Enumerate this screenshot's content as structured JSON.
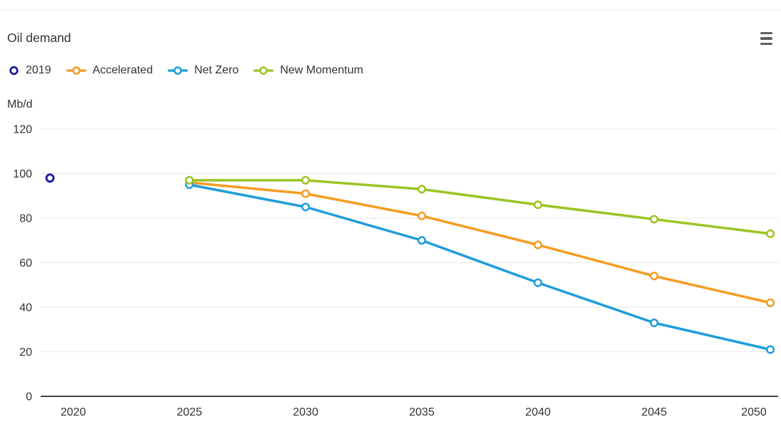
{
  "chart_data": {
    "type": "line",
    "title": "Oil demand",
    "ylabel": "Mb/d",
    "ylim": [
      0,
      120
    ],
    "y_ticks": [
      0,
      20,
      40,
      60,
      80,
      100,
      120
    ],
    "x_ticks": [
      2020,
      2025,
      2030,
      2035,
      2040,
      2045,
      2050
    ],
    "xlim": [
      2019,
      2050.5
    ],
    "grid": "horizontal gridlines on",
    "legend_position": "top-left",
    "axis_color": "#444444",
    "grid_color": "#e6e6e6",
    "text_color": "#333333",
    "series": [
      {
        "name": "2019",
        "color": "#1F1F9C",
        "marker_only": true,
        "x": [
          2019
        ],
        "values": [
          98
        ]
      },
      {
        "name": "Accelerated",
        "color": "#F59C22",
        "marker_only": false,
        "x": [
          2025,
          2030,
          2035,
          2040,
          2045,
          2050
        ],
        "values": [
          96,
          91,
          81,
          68,
          54,
          42
        ]
      },
      {
        "name": "Net Zero",
        "color": "#1F9DD9",
        "marker_only": false,
        "x": [
          2025,
          2030,
          2035,
          2040,
          2045,
          2050
        ],
        "values": [
          95,
          85,
          70,
          51,
          33,
          21
        ]
      },
      {
        "name": "New Momentum",
        "color": "#9AC423",
        "marker_only": false,
        "x": [
          2025,
          2030,
          2035,
          2040,
          2045,
          2050
        ],
        "values": [
          97,
          97,
          93,
          86,
          79.5,
          73
        ]
      }
    ]
  },
  "icons": {
    "context_menu": "hamburger-menu-icon"
  }
}
